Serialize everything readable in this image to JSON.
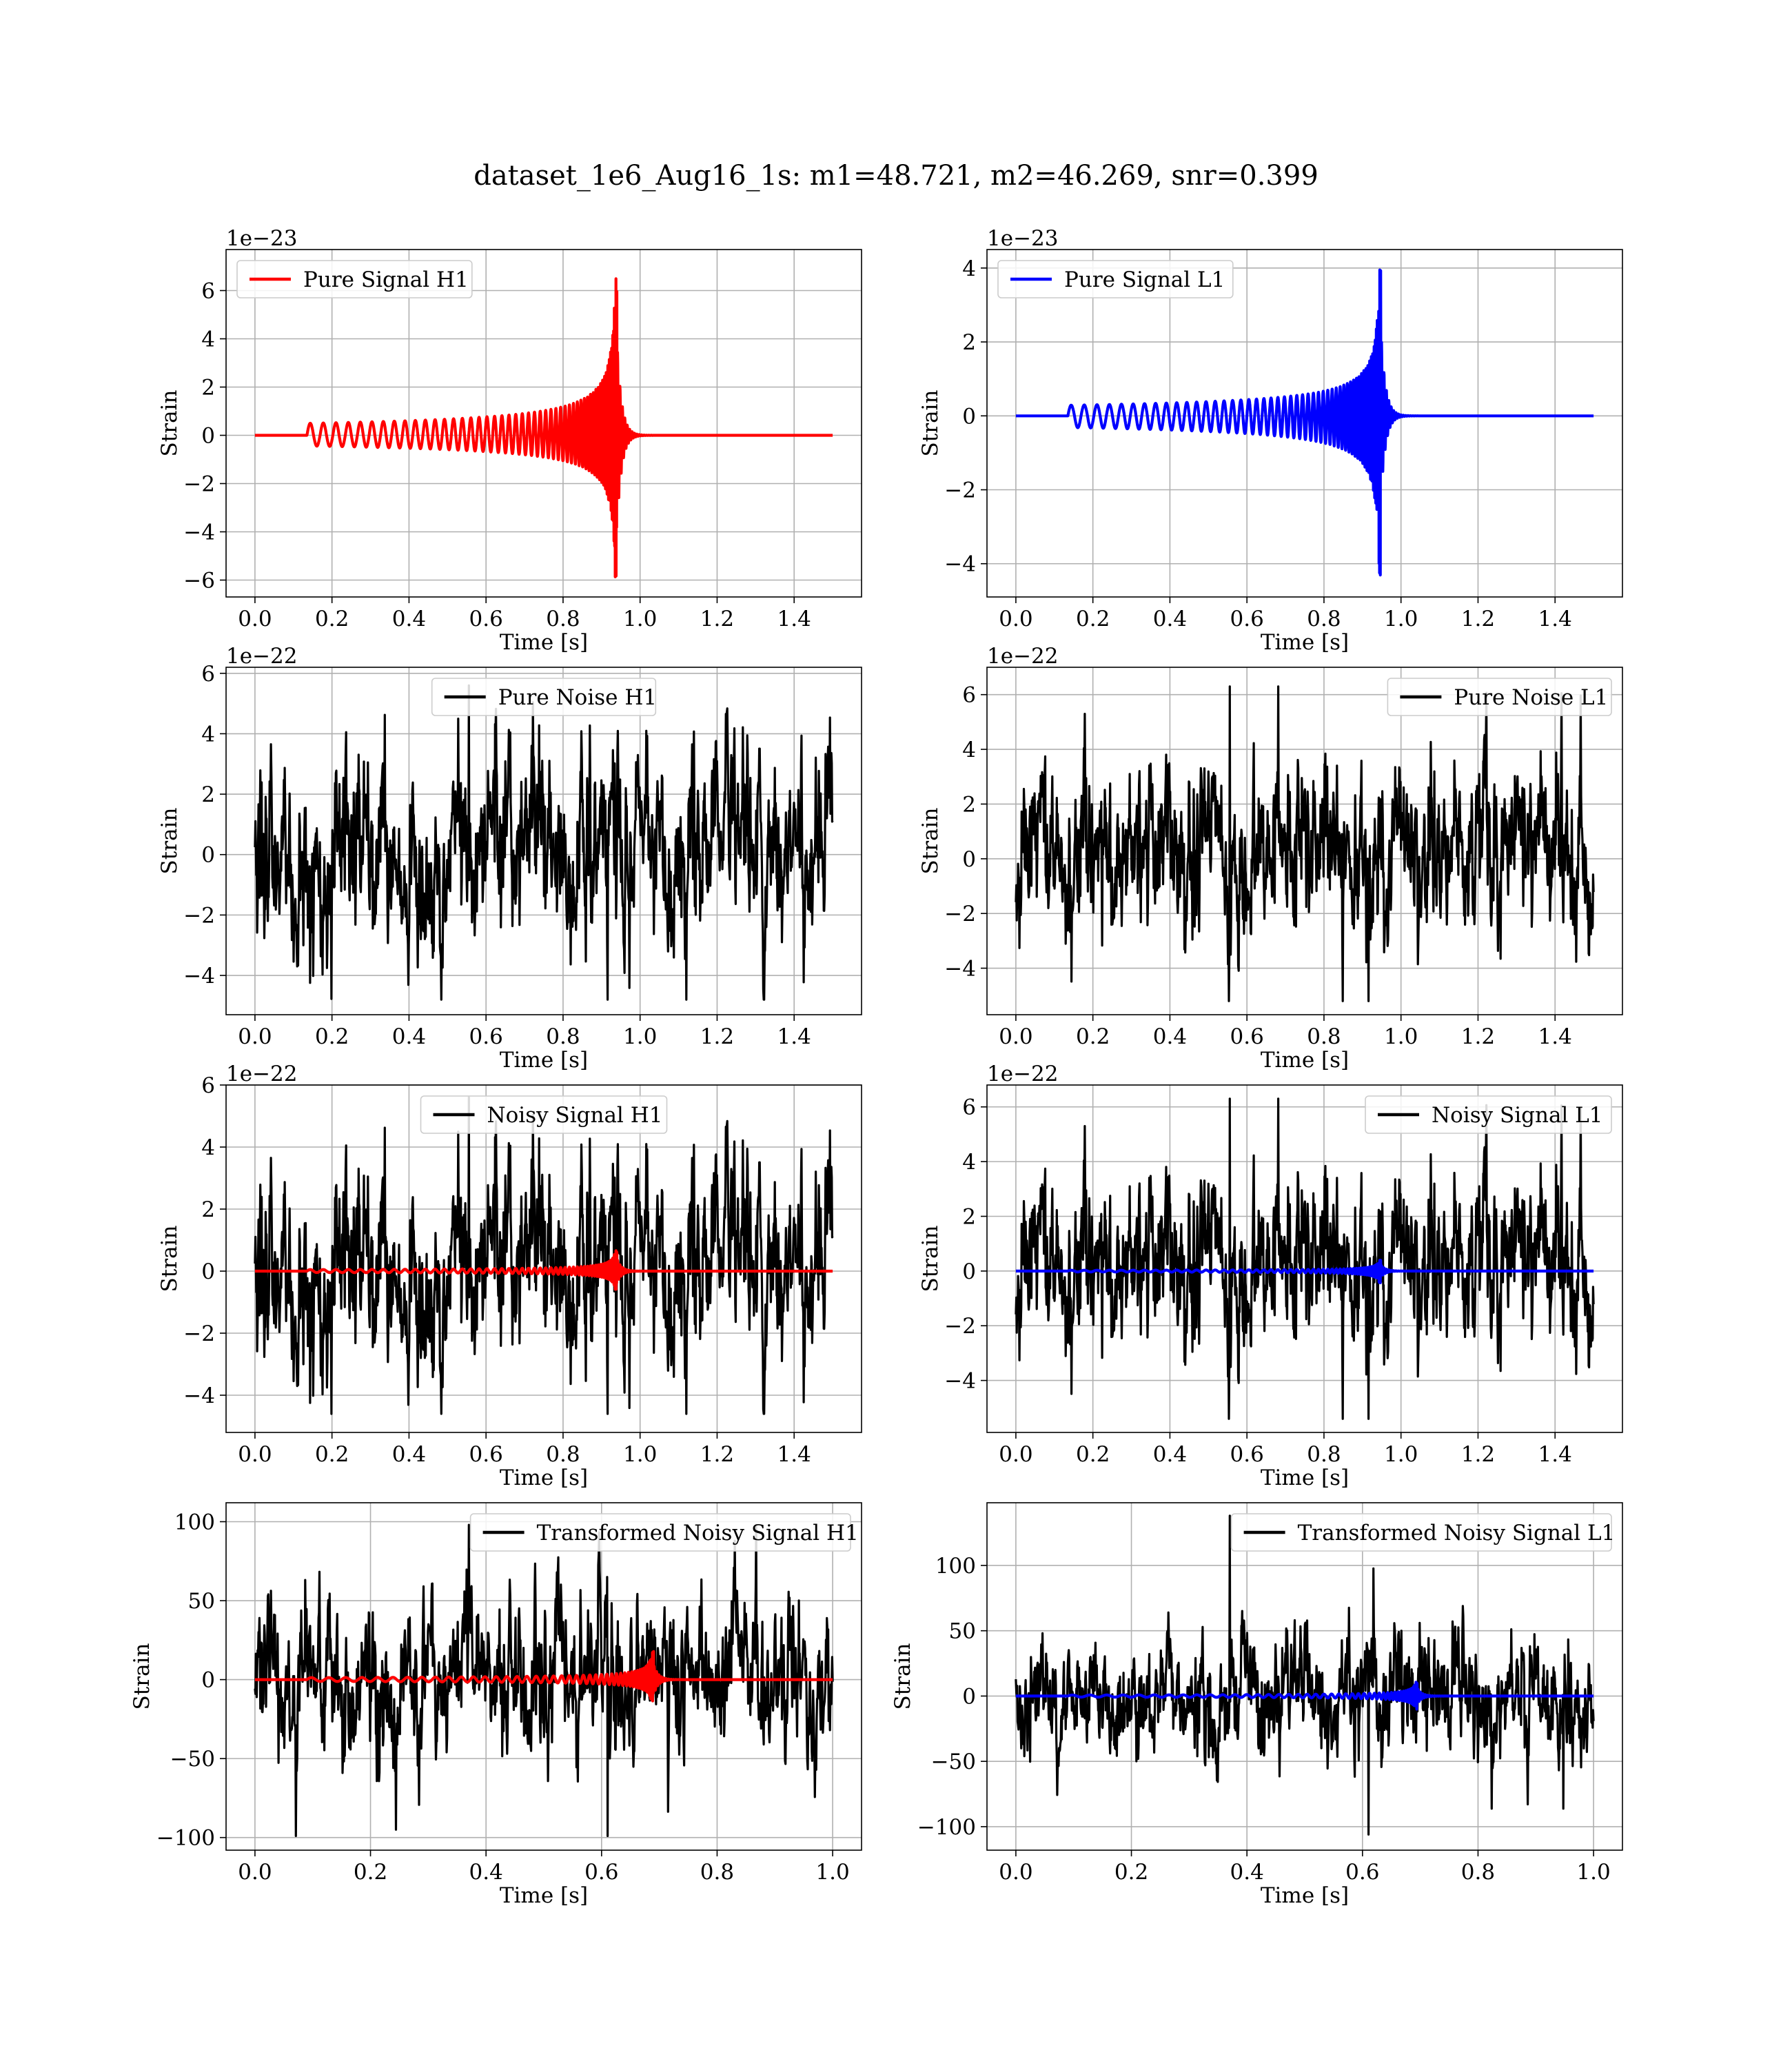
{
  "figure": {
    "title": "dataset_1e6_Aug16_1s: m1=48.721, m2=46.269, snr=0.399"
  },
  "colors": {
    "h1_signal": "#ff0000",
    "l1_signal": "#0000ff",
    "noise": "#000000",
    "grid": "#b0b0b0"
  },
  "chart_data": [
    {
      "id": "pure-signal-h1",
      "type": "line",
      "legend": "Pure Signal H1",
      "legend_loc": "upper left",
      "offset_text": "1e−23",
      "xlabel": "Time [s]",
      "ylabel": "Strain",
      "xlim": [
        -0.075,
        1.575
      ],
      "ylim": [
        -6.7,
        7.7
      ],
      "xticks": [
        0.0,
        0.2,
        0.4,
        0.6,
        0.8,
        1.0,
        1.2,
        1.4
      ],
      "xtick_labels": [
        "0.0",
        "0.2",
        "0.4",
        "0.6",
        "0.8",
        "1.0",
        "1.2",
        "1.4"
      ],
      "yticks": [
        -6,
        -4,
        -2,
        0,
        2,
        4,
        6
      ],
      "ytick_labels": [
        "−6",
        "−4",
        "−2",
        "0",
        "2",
        "4",
        "6"
      ],
      "grid": true,
      "series": [
        {
          "kind": "chirp",
          "color": "#ff0000",
          "x_start": 0.0,
          "x_end": 1.5,
          "merge_time": 0.94,
          "peak": 7.1,
          "neg_peak": -6.3
        }
      ]
    },
    {
      "id": "pure-signal-l1",
      "type": "line",
      "legend": "Pure Signal L1",
      "legend_loc": "upper left",
      "offset_text": "1e−23",
      "xlabel": "Time [s]",
      "ylabel": "Strain",
      "xlim": [
        -0.075,
        1.575
      ],
      "ylim": [
        -4.9,
        4.5
      ],
      "xticks": [
        0.0,
        0.2,
        0.4,
        0.6,
        0.8,
        1.0,
        1.2,
        1.4
      ],
      "xtick_labels": [
        "0.0",
        "0.2",
        "0.4",
        "0.6",
        "0.8",
        "1.0",
        "1.2",
        "1.4"
      ],
      "yticks": [
        -4,
        -2,
        0,
        2,
        4
      ],
      "ytick_labels": [
        "−4",
        "−2",
        "0",
        "2",
        "4"
      ],
      "grid": true,
      "series": [
        {
          "kind": "chirp",
          "color": "#0000ff",
          "x_start": 0.0,
          "x_end": 1.5,
          "merge_time": 0.948,
          "peak": 4.1,
          "neg_peak": -4.5
        }
      ]
    },
    {
      "id": "pure-noise-h1",
      "type": "line",
      "legend": "Pure Noise H1",
      "legend_loc": "upper center",
      "offset_text": "1e−22",
      "xlabel": "Time [s]",
      "ylabel": "Strain",
      "xlim": [
        -0.075,
        1.575
      ],
      "ylim": [
        -5.3,
        6.2
      ],
      "xticks": [
        0.0,
        0.2,
        0.4,
        0.6,
        0.8,
        1.0,
        1.2,
        1.4
      ],
      "xtick_labels": [
        "0.0",
        "0.2",
        "0.4",
        "0.6",
        "0.8",
        "1.0",
        "1.2",
        "1.4"
      ],
      "yticks": [
        -4,
        -2,
        0,
        2,
        4,
        6
      ],
      "ytick_labels": [
        "−4",
        "−2",
        "0",
        "2",
        "4",
        "6"
      ],
      "grid": true,
      "series": [
        {
          "kind": "noise",
          "color": "#000000",
          "x_start": 0.0,
          "x_end": 1.5,
          "amp": 2.7,
          "max": 5.6,
          "min": -4.8,
          "seed": 11
        }
      ]
    },
    {
      "id": "pure-noise-l1",
      "type": "line",
      "legend": "Pure Noise L1",
      "legend_loc": "upper right",
      "offset_text": "1e−22",
      "xlabel": "Time [s]",
      "ylabel": "Strain",
      "xlim": [
        -0.075,
        1.575
      ],
      "ylim": [
        -5.7,
        7.0
      ],
      "xticks": [
        0.0,
        0.2,
        0.4,
        0.6,
        0.8,
        1.0,
        1.2,
        1.4
      ],
      "xtick_labels": [
        "0.0",
        "0.2",
        "0.4",
        "0.6",
        "0.8",
        "1.0",
        "1.2",
        "1.4"
      ],
      "yticks": [
        -4,
        -2,
        0,
        2,
        4,
        6
      ],
      "ytick_labels": [
        "−4",
        "−2",
        "0",
        "2",
        "4",
        "6"
      ],
      "grid": true,
      "series": [
        {
          "kind": "noise",
          "color": "#000000",
          "x_start": 0.0,
          "x_end": 1.5,
          "amp": 2.7,
          "max": 6.3,
          "min": -5.2,
          "seed": 23
        }
      ]
    },
    {
      "id": "noisy-signal-h1",
      "type": "line",
      "legend": "Noisy Signal H1",
      "legend_loc": "upper center",
      "offset_text": "1e−22",
      "xlabel": "Time [s]",
      "ylabel": "Strain",
      "xlim": [
        -0.075,
        1.575
      ],
      "ylim": [
        -5.2,
        6.0
      ],
      "xticks": [
        0.0,
        0.2,
        0.4,
        0.6,
        0.8,
        1.0,
        1.2,
        1.4
      ],
      "xtick_labels": [
        "0.0",
        "0.2",
        "0.4",
        "0.6",
        "0.8",
        "1.0",
        "1.2",
        "1.4"
      ],
      "yticks": [
        -4,
        -2,
        0,
        2,
        4,
        6
      ],
      "ytick_labels": [
        "−4",
        "−2",
        "0",
        "2",
        "4",
        "6"
      ],
      "grid": true,
      "series": [
        {
          "kind": "noise",
          "color": "#000000",
          "x_start": 0.0,
          "x_end": 1.5,
          "amp": 2.7,
          "max": 5.6,
          "min": -4.6,
          "seed": 11
        },
        {
          "kind": "chirp",
          "color": "#ff0000",
          "x_start": 0.0,
          "x_end": 1.5,
          "merge_time": 0.94,
          "peak": 0.72,
          "neg_peak": -0.63
        }
      ]
    },
    {
      "id": "noisy-signal-l1",
      "type": "line",
      "legend": "Noisy Signal L1",
      "legend_loc": "upper right",
      "offset_text": "1e−22",
      "xlabel": "Time [s]",
      "ylabel": "Strain",
      "xlim": [
        -0.075,
        1.575
      ],
      "ylim": [
        -5.9,
        6.8
      ],
      "xticks": [
        0.0,
        0.2,
        0.4,
        0.6,
        0.8,
        1.0,
        1.2,
        1.4
      ],
      "xtick_labels": [
        "0.0",
        "0.2",
        "0.4",
        "0.6",
        "0.8",
        "1.0",
        "1.2",
        "1.4"
      ],
      "yticks": [
        -4,
        -2,
        0,
        2,
        4,
        6
      ],
      "ytick_labels": [
        "−4",
        "−2",
        "0",
        "2",
        "4",
        "6"
      ],
      "grid": true,
      "series": [
        {
          "kind": "noise",
          "color": "#000000",
          "x_start": 0.0,
          "x_end": 1.5,
          "amp": 2.7,
          "max": 6.3,
          "min": -5.4,
          "seed": 23
        },
        {
          "kind": "chirp",
          "color": "#0000ff",
          "x_start": 0.0,
          "x_end": 1.5,
          "merge_time": 0.948,
          "peak": 0.41,
          "neg_peak": -0.45
        }
      ]
    },
    {
      "id": "transformed-noisy-signal-h1",
      "type": "line",
      "legend": "Transformed Noisy Signal H1",
      "legend_loc": "upper right",
      "offset_text": "",
      "xlabel": "Time [s]",
      "ylabel": "Strain",
      "xlim": [
        -0.05,
        1.05
      ],
      "ylim": [
        -108,
        112
      ],
      "xticks": [
        0.0,
        0.2,
        0.4,
        0.6,
        0.8,
        1.0
      ],
      "xtick_labels": [
        "0.0",
        "0.2",
        "0.4",
        "0.6",
        "0.8",
        "1.0"
      ],
      "yticks": [
        -100,
        -50,
        0,
        50,
        100
      ],
      "ytick_labels": [
        "−100",
        "−50",
        "0",
        "50",
        "100"
      ],
      "grid": true,
      "series": [
        {
          "kind": "noise",
          "color": "#000000",
          "x_start": 0.0,
          "x_end": 1.0,
          "amp": 42,
          "max": 98,
          "min": -99,
          "seed": 37
        },
        {
          "kind": "chirp",
          "color": "#ff0000",
          "x_start": 0.0,
          "x_end": 1.0,
          "merge_time": 0.69,
          "peak": 18,
          "neg_peak": -16
        }
      ]
    },
    {
      "id": "transformed-noisy-signal-l1",
      "type": "line",
      "legend": "Transformed Noisy Signal L1",
      "legend_loc": "upper right",
      "offset_text": "",
      "xlabel": "Time [s]",
      "ylabel": "Strain",
      "xlim": [
        -0.05,
        1.05
      ],
      "ylim": [
        -118,
        148
      ],
      "xticks": [
        0.0,
        0.2,
        0.4,
        0.6,
        0.8,
        1.0
      ],
      "xtick_labels": [
        "0.0",
        "0.2",
        "0.4",
        "0.6",
        "0.8",
        "1.0"
      ],
      "yticks": [
        -100,
        -50,
        0,
        50,
        100
      ],
      "ytick_labels": [
        "−100",
        "−50",
        "0",
        "50",
        "100"
      ],
      "grid": true,
      "series": [
        {
          "kind": "noise",
          "color": "#000000",
          "x_start": 0.0,
          "x_end": 1.0,
          "amp": 40,
          "max": 138,
          "min": -106,
          "seed": 53
        },
        {
          "kind": "chirp",
          "color": "#0000ff",
          "x_start": 0.0,
          "x_end": 1.0,
          "merge_time": 0.695,
          "peak": 11,
          "neg_peak": -11
        }
      ]
    }
  ]
}
